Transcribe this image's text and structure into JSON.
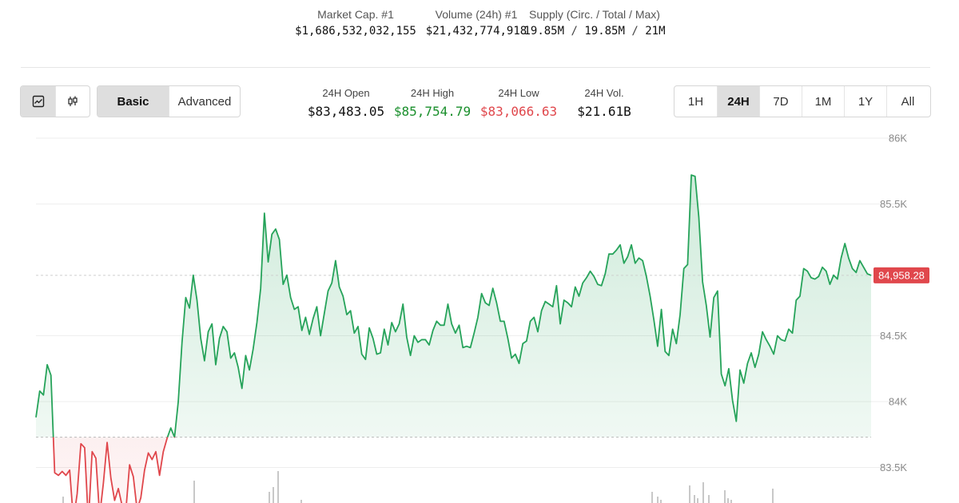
{
  "market_stats": [
    {
      "label": "Market Cap. #1",
      "value": "$1,686,532,032,155"
    },
    {
      "label": "Volume (24h) #1",
      "value": "$21,432,774,918"
    },
    {
      "label": "Supply (Circ. / Total / Max)",
      "circ": "19.85M",
      "total": "19.85M",
      "max": "21M",
      "sep": " / "
    }
  ],
  "chart_type_buttons": [
    {
      "icon": "line-chart-icon",
      "active": true
    },
    {
      "icon": "candlestick-icon",
      "active": false
    }
  ],
  "mode_buttons": [
    {
      "label": "Basic",
      "active": true
    },
    {
      "label": "Advanced",
      "active": false
    }
  ],
  "day_stats": [
    {
      "label": "24H Open",
      "value": "$83,483.05",
      "color": "#111111"
    },
    {
      "label": "24H High",
      "value": "$85,754.79",
      "color": "#1a8f2c"
    },
    {
      "label": "24H Low",
      "value": "$83,066.63",
      "color": "#e0474c"
    },
    {
      "label": "24H Vol.",
      "value": "$21.61B",
      "color": "#111111"
    }
  ],
  "range_buttons": [
    {
      "label": "1H",
      "active": false
    },
    {
      "label": "24H",
      "active": true
    },
    {
      "label": "7D",
      "active": false
    },
    {
      "label": "1M",
      "active": false
    },
    {
      "label": "1Y",
      "active": false
    },
    {
      "label": "All",
      "active": false
    }
  ],
  "chart_data": {
    "type": "line",
    "y_ticks": [
      {
        "value": 86000,
        "label": "86K"
      },
      {
        "value": 85500,
        "label": "85.5K"
      },
      {
        "value": 84500,
        "label": "84.5K"
      },
      {
        "value": 84000,
        "label": "84K"
      },
      {
        "value": 83500,
        "label": "83.5K"
      }
    ],
    "ylim": [
      83240,
      86050
    ],
    "open_price": 83730,
    "current_price": {
      "value": 84958.28,
      "label": "84,958.28"
    },
    "colors": {
      "up": "#26a35a",
      "down": "#e0474c",
      "tag": "#e0474c",
      "grid": "#eeeeee"
    },
    "values": [
      83880,
      84080,
      84050,
      84280,
      84200,
      83460,
      83440,
      83470,
      83440,
      83480,
      83100,
      83300,
      83680,
      83650,
      83080,
      83620,
      83570,
      83130,
      83380,
      83690,
      83420,
      83250,
      83340,
      83210,
      83170,
      83520,
      83430,
      83180,
      83270,
      83480,
      83610,
      83560,
      83620,
      83440,
      83620,
      83720,
      83800,
      83730,
      84000,
      84450,
      84790,
      84710,
      84960,
      84770,
      84480,
      84310,
      84530,
      84590,
      84280,
      84480,
      84570,
      84530,
      84330,
      84370,
      84260,
      84100,
      84350,
      84240,
      84400,
      84600,
      84860,
      85430,
      85060,
      85270,
      85310,
      85230,
      84890,
      84960,
      84790,
      84700,
      84720,
      84540,
      84640,
      84510,
      84630,
      84720,
      84500,
      84670,
      84840,
      84900,
      85070,
      84870,
      84800,
      84660,
      84690,
      84520,
      84570,
      84360,
      84320,
      84560,
      84480,
      84360,
      84370,
      84550,
      84430,
      84600,
      84530,
      84590,
      84740,
      84490,
      84350,
      84500,
      84450,
      84470,
      84470,
      84430,
      84540,
      84610,
      84580,
      84580,
      84740,
      84590,
      84520,
      84580,
      84410,
      84420,
      84410,
      84520,
      84640,
      84820,
      84750,
      84730,
      84860,
      84750,
      84610,
      84610,
      84480,
      84330,
      84360,
      84290,
      84440,
      84460,
      84610,
      84640,
      84530,
      84690,
      84760,
      84740,
      84720,
      84880,
      84590,
      84770,
      84750,
      84720,
      84870,
      84800,
      84900,
      84940,
      84990,
      84950,
      84890,
      84880,
      84970,
      85120,
      85120,
      85150,
      85190,
      85050,
      85100,
      85190,
      85050,
      85090,
      85070,
      84950,
      84800,
      84620,
      84420,
      84700,
      84380,
      84350,
      84550,
      84440,
      84660,
      85010,
      85040,
      85720,
      85710,
      85400,
      84910,
      84730,
      84490,
      84790,
      84840,
      84210,
      84120,
      84250,
      84010,
      83850,
      84240,
      84140,
      84290,
      84370,
      84260,
      84360,
      84530,
      84470,
      84420,
      84360,
      84500,
      84470,
      84460,
      84550,
      84520,
      84770,
      84800,
      85010,
      84990,
      84940,
      84930,
      84950,
      85020,
      84990,
      84890,
      84960,
      84930,
      85090,
      85200,
      85090,
      85010,
      84980,
      85070,
      85020,
      84970,
      84958.28
    ]
  }
}
